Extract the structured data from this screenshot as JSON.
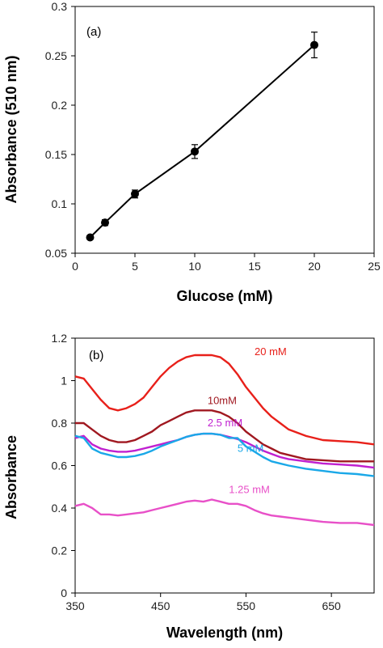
{
  "chart_data": [
    {
      "type": "line",
      "panel_label": "(a)",
      "xlabel": "Glucose (mM)",
      "ylabel": "Absorbance (510 nm)",
      "xlim": [
        0,
        25
      ],
      "ylim": [
        0.05,
        0.3
      ],
      "xticks": [
        "0",
        "5",
        "10",
        "15",
        "20",
        "25"
      ],
      "yticks": [
        "0.05",
        "0.1",
        "0.15",
        "0.2",
        "0.25",
        "0.3"
      ],
      "grid": false,
      "markers": true,
      "error_bars": true,
      "series": [
        {
          "x": [
            1.25,
            2.5,
            5,
            10,
            20
          ],
          "values": [
            0.066,
            0.081,
            0.11,
            0.153,
            0.261
          ],
          "errors": [
            0.002,
            0.003,
            0.004,
            0.007,
            0.013
          ],
          "color": "#000000"
        }
      ]
    },
    {
      "type": "line",
      "panel_label": "(b)",
      "xlabel": "Wavelength (nm)",
      "ylabel": "Absorbance",
      "xlim": [
        350,
        700
      ],
      "ylim": [
        0,
        1.2
      ],
      "xticks": [
        "350",
        "450",
        "550",
        "650"
      ],
      "yticks": [
        "0",
        "0.2",
        "0.4",
        "0.6",
        "0.8",
        "1",
        "1.2"
      ],
      "grid": false,
      "series": [
        {
          "name": "20 mM",
          "color": "#e8201a",
          "x": [
            350,
            360,
            370,
            380,
            390,
            400,
            410,
            420,
            430,
            440,
            450,
            460,
            470,
            480,
            490,
            500,
            510,
            520,
            530,
            540,
            550,
            560,
            570,
            580,
            590,
            600,
            620,
            640,
            660,
            680,
            700
          ],
          "values": [
            1.02,
            1.01,
            0.96,
            0.91,
            0.87,
            0.86,
            0.87,
            0.89,
            0.92,
            0.97,
            1.02,
            1.06,
            1.09,
            1.11,
            1.12,
            1.12,
            1.12,
            1.11,
            1.08,
            1.03,
            0.97,
            0.92,
            0.87,
            0.83,
            0.8,
            0.77,
            0.74,
            0.72,
            0.715,
            0.71,
            0.7
          ]
        },
        {
          "name": "10mM",
          "color": "#a01820",
          "x": [
            350,
            360,
            370,
            380,
            390,
            400,
            410,
            420,
            430,
            440,
            450,
            460,
            470,
            480,
            490,
            500,
            510,
            520,
            530,
            540,
            550,
            560,
            570,
            580,
            590,
            600,
            620,
            640,
            660,
            680,
            700
          ],
          "values": [
            0.8,
            0.8,
            0.77,
            0.74,
            0.72,
            0.71,
            0.71,
            0.72,
            0.74,
            0.76,
            0.79,
            0.81,
            0.83,
            0.85,
            0.86,
            0.86,
            0.86,
            0.85,
            0.83,
            0.8,
            0.76,
            0.73,
            0.7,
            0.68,
            0.66,
            0.65,
            0.63,
            0.625,
            0.62,
            0.62,
            0.62
          ]
        },
        {
          "name": "2.5 mM",
          "color": "#c020d0",
          "x": [
            350,
            360,
            370,
            380,
            390,
            400,
            410,
            420,
            430,
            440,
            450,
            460,
            470,
            480,
            490,
            500,
            510,
            520,
            530,
            540,
            550,
            560,
            570,
            580,
            590,
            600,
            620,
            640,
            660,
            680,
            700
          ],
          "values": [
            0.73,
            0.74,
            0.7,
            0.68,
            0.67,
            0.665,
            0.665,
            0.67,
            0.68,
            0.69,
            0.7,
            0.71,
            0.72,
            0.735,
            0.745,
            0.75,
            0.75,
            0.745,
            0.735,
            0.725,
            0.71,
            0.69,
            0.67,
            0.655,
            0.64,
            0.63,
            0.62,
            0.61,
            0.605,
            0.6,
            0.59
          ]
        },
        {
          "name": "5 mM",
          "color": "#1aa8e8",
          "x": [
            350,
            360,
            370,
            380,
            390,
            400,
            410,
            420,
            430,
            440,
            450,
            460,
            470,
            480,
            490,
            500,
            510,
            520,
            530,
            540,
            550,
            560,
            570,
            580,
            590,
            600,
            620,
            640,
            660,
            680,
            700
          ],
          "values": [
            0.74,
            0.73,
            0.68,
            0.66,
            0.65,
            0.64,
            0.64,
            0.645,
            0.655,
            0.67,
            0.69,
            0.705,
            0.72,
            0.735,
            0.745,
            0.75,
            0.75,
            0.745,
            0.73,
            0.73,
            0.69,
            0.665,
            0.64,
            0.62,
            0.61,
            0.6,
            0.585,
            0.575,
            0.565,
            0.56,
            0.55
          ]
        },
        {
          "name": "1.25 mM",
          "color": "#e850c8",
          "x": [
            350,
            360,
            370,
            380,
            390,
            400,
            410,
            420,
            430,
            440,
            450,
            460,
            470,
            480,
            490,
            500,
            510,
            520,
            530,
            540,
            550,
            560,
            570,
            580,
            590,
            600,
            620,
            640,
            660,
            680,
            700
          ],
          "values": [
            0.41,
            0.42,
            0.4,
            0.37,
            0.37,
            0.365,
            0.37,
            0.375,
            0.38,
            0.39,
            0.4,
            0.41,
            0.42,
            0.43,
            0.435,
            0.43,
            0.44,
            0.43,
            0.42,
            0.42,
            0.41,
            0.39,
            0.375,
            0.365,
            0.36,
            0.355,
            0.345,
            0.335,
            0.33,
            0.33,
            0.32
          ]
        }
      ]
    }
  ]
}
